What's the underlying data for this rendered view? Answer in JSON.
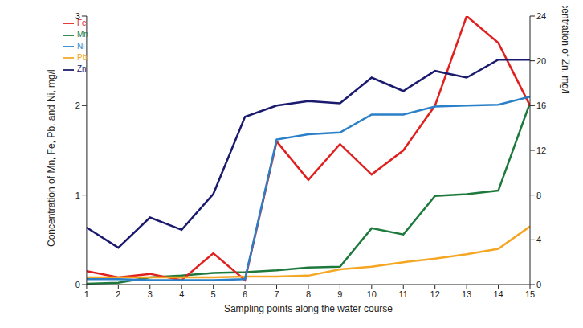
{
  "chart_data": {
    "type": "line",
    "x_label": "Sampling points along the water course",
    "y_label": "Concentration of Mn, Fe, Pb, and Ni, mg/l",
    "y2_label": "Concentration of Zn, mg/l",
    "x": [
      1,
      2,
      3,
      4,
      5,
      6,
      7,
      8,
      9,
      10,
      11,
      12,
      13,
      14,
      15
    ],
    "xlim": [
      1,
      15
    ],
    "xticks": [
      1,
      2,
      3,
      4,
      5,
      6,
      7,
      8,
      9,
      10,
      11,
      12,
      13,
      14,
      15
    ],
    "ylim": [
      0,
      3
    ],
    "yticks": [
      0,
      1,
      2,
      3
    ],
    "y2lim": [
      0,
      24
    ],
    "y2ticks": [
      0,
      4,
      8,
      12,
      16,
      20,
      24
    ],
    "grid": false,
    "legend": "top-left",
    "series": [
      {
        "name": "Mn",
        "color": "#1e7a3c",
        "values": [
          0.01,
          0.02,
          0.08,
          0.1,
          0.13,
          0.14,
          0.16,
          0.19,
          0.2,
          0.63,
          0.56,
          0.99,
          1.01,
          1.05,
          2.03
        ]
      },
      {
        "name": "Fe",
        "color": "#e0201e",
        "values": [
          0.15,
          0.08,
          0.12,
          0.05,
          0.35,
          0.05,
          1.6,
          1.17,
          1.57,
          1.23,
          1.5,
          2.0,
          3.0,
          2.7,
          2.0
        ]
      },
      {
        "name": "Pb",
        "color": "#f5a623",
        "values": [
          0.08,
          0.08,
          0.08,
          0.08,
          0.08,
          0.09,
          0.09,
          0.1,
          0.17,
          0.2,
          0.25,
          0.29,
          0.34,
          0.4,
          0.65
        ]
      },
      {
        "name": "Ni",
        "color": "#2a7fc8",
        "values": [
          0.06,
          0.06,
          0.05,
          0.05,
          0.05,
          0.06,
          1.62,
          1.68,
          1.7,
          1.9,
          1.9,
          1.99,
          2.0,
          2.01,
          2.1
        ]
      },
      {
        "name": "Zn",
        "color": "#1a1a6e",
        "axis": "y2",
        "values": [
          5.1,
          3.3,
          6.0,
          4.9,
          8.1,
          15.0,
          16.0,
          16.4,
          16.2,
          18.5,
          17.3,
          19.1,
          18.5,
          20.1,
          20.1
        ]
      }
    ]
  }
}
